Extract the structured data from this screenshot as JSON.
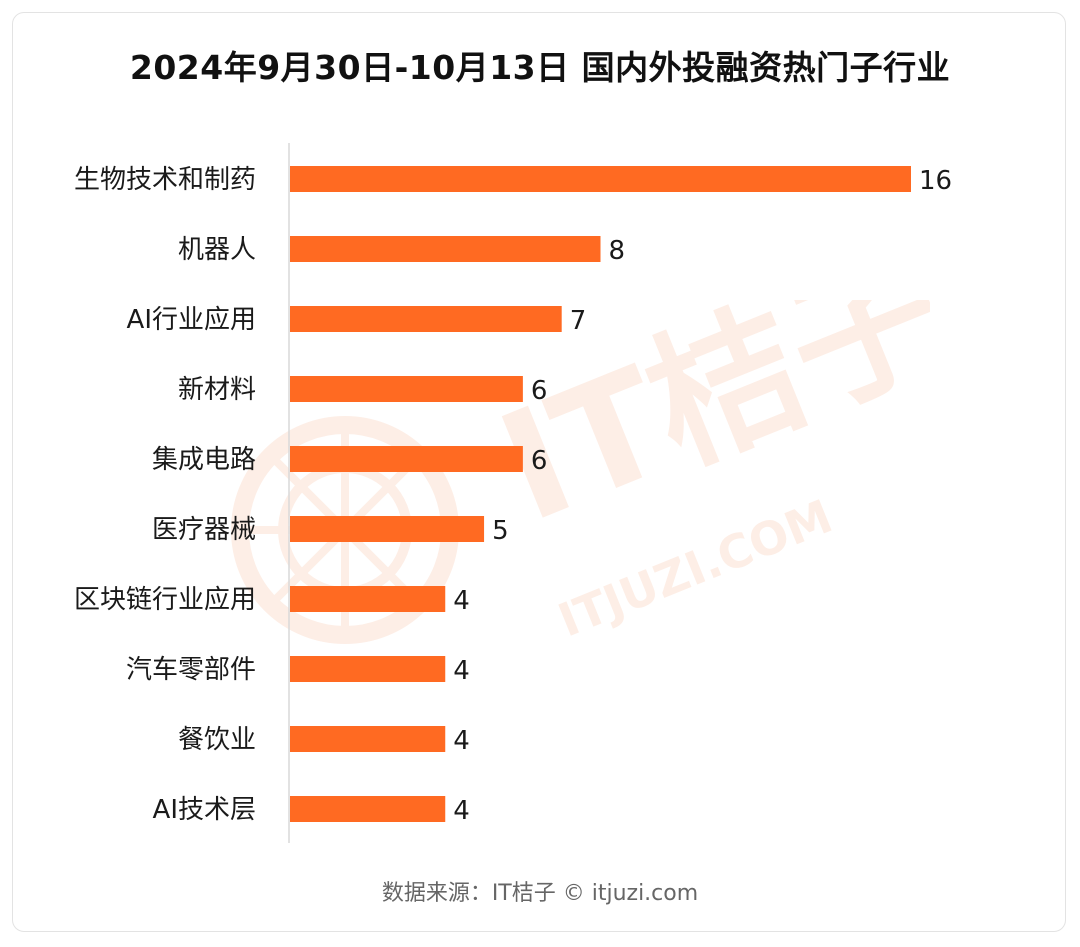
{
  "title": "2024年9月30日-10月13日 国内外投融资热门子行业",
  "source": "数据来源：IT桔子 © itjuzi.com",
  "watermark": {
    "brand": "IT桔子",
    "site": "ITJUZI.COM"
  },
  "colors": {
    "bar": "#ff6a22",
    "axis": "#d9d9d9",
    "watermark": "#fbe6dc"
  },
  "chart_data": {
    "type": "bar",
    "orientation": "horizontal",
    "categories": [
      "生物技术和制药",
      "机器人",
      "AI行业应用",
      "新材料",
      "集成电路",
      "医疗器械",
      "区块链行业应用",
      "汽车零部件",
      "餐饮业",
      "AI技术层"
    ],
    "values": [
      16,
      8,
      7,
      6,
      6,
      5,
      4,
      4,
      4,
      4
    ],
    "title": "2024年9月30日-10月13日 国内外投融资热门子行业",
    "xlim": [
      0,
      16
    ],
    "grid": false,
    "legend": "none"
  }
}
